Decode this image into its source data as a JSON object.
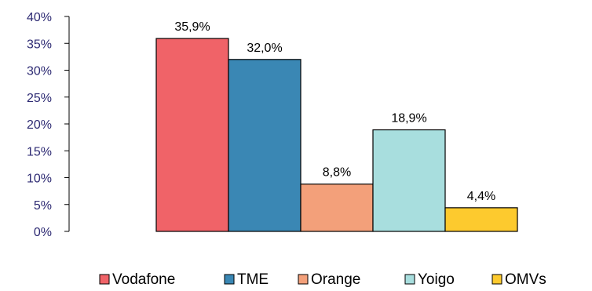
{
  "chart_data": {
    "type": "bar",
    "categories": [
      "Vodafone",
      "TME",
      "Orange",
      "Yoigo",
      "OMVs"
    ],
    "values": [
      35.9,
      32.0,
      8.8,
      18.9,
      4.4
    ],
    "data_labels": [
      "35,9%",
      "32,0%",
      "8,8%",
      "18,9%",
      "4,4%"
    ],
    "colors": [
      "#f06368",
      "#3a87b4",
      "#f3a07a",
      "#a8dede",
      "#fdca2e"
    ],
    "title": "",
    "xlabel": "",
    "ylabel": "",
    "ylim": [
      0,
      40
    ],
    "yticks": [
      0,
      5,
      10,
      15,
      20,
      25,
      30,
      35,
      40
    ],
    "ytick_labels": [
      "0%",
      "5%",
      "10%",
      "15%",
      "20%",
      "25%",
      "30%",
      "35%",
      "40%"
    ],
    "grid": false,
    "legend": {
      "position": "bottom",
      "entries": [
        "Vodafone",
        "TME",
        "Orange",
        "Yoigo",
        "OMVs"
      ]
    }
  }
}
